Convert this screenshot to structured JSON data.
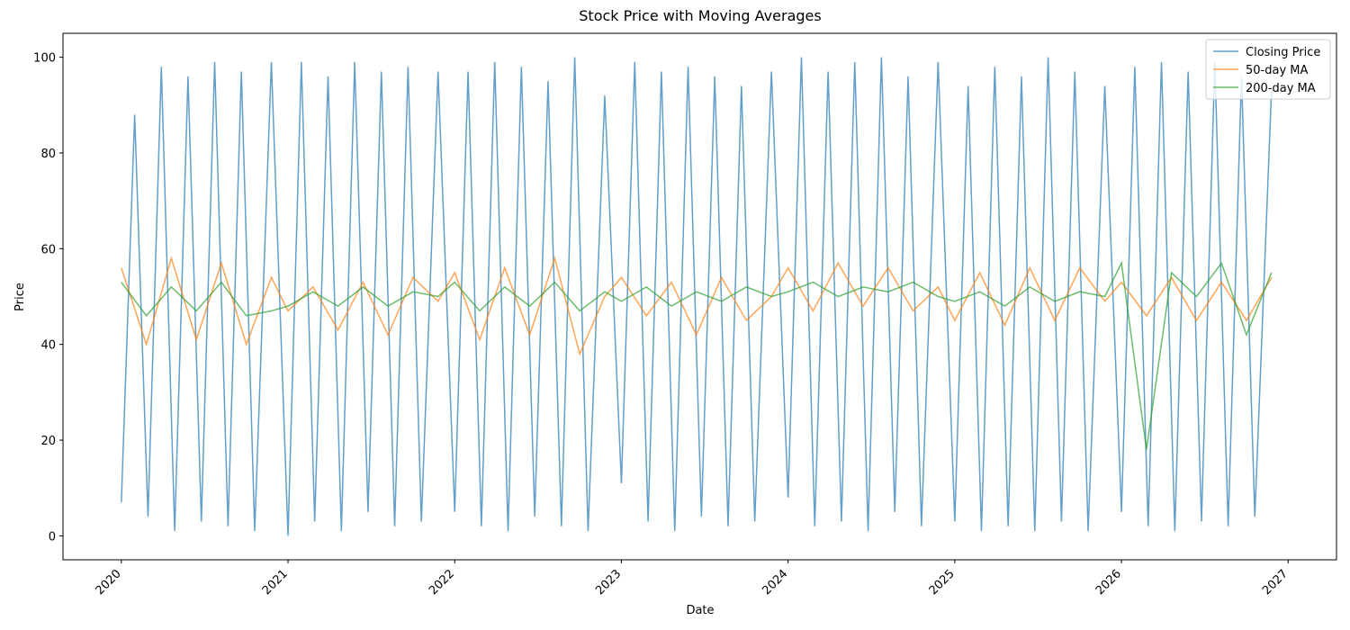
{
  "chart_data": {
    "type": "line",
    "title": "Stock Price with Moving Averages",
    "x_label": "Date",
    "y_label": "Price",
    "xlim": [
      2019.65,
      2027.29
    ],
    "ylim": [
      -5,
      105
    ],
    "xticks": [
      2020,
      2021,
      2022,
      2023,
      2024,
      2025,
      2026,
      2027
    ],
    "yticks": [
      0,
      20,
      40,
      60,
      80,
      100
    ],
    "legend": "upper right",
    "series": [
      {
        "name": "Closing Price",
        "color": "#1f77b4",
        "x": [
          2020.0,
          2020.08,
          2020.16,
          2020.24,
          2020.32,
          2020.4,
          2020.48,
          2020.56,
          2020.64,
          2020.72,
          2020.8,
          2020.9,
          2021.0,
          2021.08,
          2021.16,
          2021.24,
          2021.32,
          2021.4,
          2021.48,
          2021.56,
          2021.64,
          2021.72,
          2021.8,
          2021.9,
          2022.0,
          2022.08,
          2022.16,
          2022.24,
          2022.32,
          2022.4,
          2022.48,
          2022.56,
          2022.64,
          2022.72,
          2022.8,
          2022.9,
          2023.0,
          2023.08,
          2023.16,
          2023.24,
          2023.32,
          2023.4,
          2023.48,
          2023.56,
          2023.64,
          2023.72,
          2023.8,
          2023.9,
          2024.0,
          2024.08,
          2024.16,
          2024.24,
          2024.32,
          2024.4,
          2024.48,
          2024.56,
          2024.64,
          2024.72,
          2024.8,
          2024.9,
          2025.0,
          2025.08,
          2025.16,
          2025.24,
          2025.32,
          2025.4,
          2025.48,
          2025.56,
          2025.64,
          2025.72,
          2025.8,
          2025.9,
          2026.0,
          2026.08,
          2026.16,
          2026.24,
          2026.32,
          2026.4,
          2026.48,
          2026.56,
          2026.64,
          2026.72,
          2026.8,
          2026.9
        ],
        "values": [
          7,
          88,
          4,
          98,
          1,
          96,
          3,
          99,
          2,
          97,
          1,
          99,
          0,
          99,
          3,
          96,
          1,
          99,
          5,
          97,
          2,
          98,
          3,
          97,
          5,
          97,
          2,
          99,
          1,
          98,
          4,
          95,
          2,
          100,
          1,
          92,
          11,
          99,
          3,
          97,
          1,
          98,
          4,
          96,
          2,
          94,
          3,
          97,
          8,
          100,
          2,
          97,
          3,
          99,
          1,
          100,
          5,
          96,
          2,
          99,
          3,
          94,
          1,
          98,
          2,
          96,
          1,
          100,
          3,
          97,
          1,
          94,
          5,
          98,
          2,
          99,
          1,
          97,
          3,
          99,
          2,
          96,
          4,
          93
        ]
      },
      {
        "name": "50-day MA",
        "color": "#ff7f0e",
        "x": [
          2020.0,
          2020.15,
          2020.3,
          2020.45,
          2020.6,
          2020.75,
          2020.9,
          2021.0,
          2021.15,
          2021.3,
          2021.45,
          2021.6,
          2021.75,
          2021.9,
          2022.0,
          2022.15,
          2022.3,
          2022.45,
          2022.6,
          2022.75,
          2022.9,
          2023.0,
          2023.15,
          2023.3,
          2023.45,
          2023.6,
          2023.75,
          2023.9,
          2024.0,
          2024.15,
          2024.3,
          2024.45,
          2024.6,
          2024.75,
          2024.9,
          2025.0,
          2025.15,
          2025.3,
          2025.45,
          2025.6,
          2025.75,
          2025.9,
          2026.0,
          2026.15,
          2026.3,
          2026.45,
          2026.6,
          2026.75,
          2026.9
        ],
        "values": [
          56,
          40,
          58,
          41,
          57,
          40,
          54,
          47,
          52,
          43,
          53,
          42,
          54,
          49,
          55,
          41,
          56,
          42,
          58,
          38,
          50,
          54,
          46,
          53,
          42,
          54,
          45,
          50,
          56,
          47,
          57,
          48,
          56,
          47,
          52,
          45,
          55,
          44,
          56,
          45,
          56,
          49,
          53,
          46,
          54,
          45,
          53,
          45,
          54
        ]
      },
      {
        "name": "200-day MA",
        "color": "#2ca02c",
        "x": [
          2020.0,
          2020.15,
          2020.3,
          2020.45,
          2020.6,
          2020.75,
          2020.9,
          2021.0,
          2021.15,
          2021.3,
          2021.45,
          2021.6,
          2021.75,
          2021.9,
          2022.0,
          2022.15,
          2022.3,
          2022.45,
          2022.6,
          2022.75,
          2022.9,
          2023.0,
          2023.15,
          2023.3,
          2023.45,
          2023.6,
          2023.75,
          2023.9,
          2024.0,
          2024.15,
          2024.3,
          2024.45,
          2024.6,
          2024.75,
          2024.9,
          2025.0,
          2025.15,
          2025.3,
          2025.45,
          2025.6,
          2025.75,
          2025.9,
          2026.0,
          2026.15,
          2026.3,
          2026.45,
          2026.6,
          2026.75,
          2026.9
        ],
        "values": [
          53,
          46,
          52,
          47,
          53,
          46,
          47,
          48,
          51,
          48,
          52,
          48,
          51,
          50,
          53,
          47,
          52,
          48,
          53,
          47,
          51,
          49,
          52,
          48,
          51,
          49,
          52,
          50,
          51,
          53,
          50,
          52,
          51,
          53,
          50,
          49,
          51,
          48,
          52,
          49,
          51,
          50,
          57,
          18,
          55,
          50,
          57,
          42,
          55
        ]
      }
    ]
  }
}
